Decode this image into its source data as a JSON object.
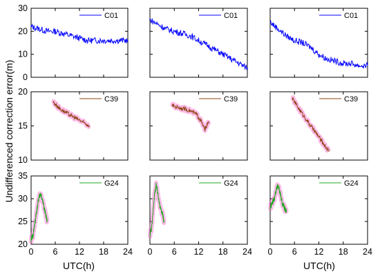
{
  "figure": {
    "ylabel": "Undifferenced correction error(m)",
    "xlabel": "UTC(h)"
  },
  "chart_data": [
    {
      "type": "line",
      "panel": "row1-col1",
      "ylim": [
        0,
        30
      ],
      "yticks": [
        0,
        10,
        20,
        30
      ],
      "xlim": [
        0,
        24
      ],
      "xticks": [
        0,
        6,
        12,
        18,
        24
      ],
      "series": [
        {
          "name": "C01",
          "color": "#0000ff",
          "x": [
            0,
            2,
            4,
            6,
            8,
            10,
            12,
            14,
            16,
            18,
            20,
            22,
            24
          ],
          "y": [
            22,
            21,
            20,
            20,
            19,
            18,
            17,
            16,
            16,
            16,
            16,
            16,
            16
          ]
        }
      ]
    },
    {
      "type": "line",
      "panel": "row1-col2",
      "ylim": [
        0,
        30
      ],
      "xlim": [
        0,
        24
      ],
      "series": [
        {
          "name": "C01",
          "color": "#0000ff",
          "x": [
            0,
            2,
            4,
            6,
            8,
            10,
            12,
            14,
            16,
            18,
            20,
            22,
            24
          ],
          "y": [
            25,
            23,
            21,
            20,
            19,
            18,
            16,
            14,
            12,
            10,
            8,
            6,
            4
          ]
        }
      ]
    },
    {
      "type": "line",
      "panel": "row1-col3",
      "ylim": [
        0,
        30
      ],
      "xlim": [
        0,
        24
      ],
      "series": [
        {
          "name": "C01",
          "color": "#0000ff",
          "x": [
            0,
            2,
            4,
            6,
            8,
            10,
            12,
            14,
            16,
            18,
            20,
            22,
            24
          ],
          "y": [
            24,
            21,
            18,
            16,
            15,
            13,
            10,
            8,
            7,
            6,
            6,
            5,
            5
          ]
        }
      ]
    },
    {
      "type": "line",
      "panel": "row2-col1",
      "ylim": [
        10,
        20
      ],
      "yticks": [
        10,
        15,
        20
      ],
      "xlim": [
        0,
        24
      ],
      "xticks": [
        0,
        6,
        12,
        18,
        24
      ],
      "series": [
        {
          "name": "C39",
          "color": "#8b4513",
          "x": [
            5.5,
            7,
            8.5,
            10,
            11.5,
            13,
            14.5
          ],
          "y": [
            18.5,
            17.6,
            17,
            16.5,
            16,
            15.5,
            15
          ]
        }
      ]
    },
    {
      "type": "line",
      "panel": "row2-col2",
      "ylim": [
        10,
        20
      ],
      "xlim": [
        0,
        24
      ],
      "series": [
        {
          "name": "C39",
          "color": "#8b4513",
          "x": [
            5.5,
            7,
            8.5,
            10,
            11.5,
            12.5,
            13.5,
            14.5
          ],
          "y": [
            18,
            17.7,
            17.5,
            17.2,
            16.7,
            15.8,
            14.5,
            15.6
          ]
        }
      ]
    },
    {
      "type": "line",
      "panel": "row2-col3",
      "ylim": [
        10,
        20
      ],
      "xlim": [
        0,
        24
      ],
      "series": [
        {
          "name": "C39",
          "color": "#8b4513",
          "x": [
            5.5,
            7,
            8.5,
            10,
            11.5,
            13,
            14.5
          ],
          "y": [
            19,
            17.6,
            16.3,
            15,
            13.8,
            12.5,
            11.3
          ]
        }
      ]
    },
    {
      "type": "line",
      "panel": "row3-col1",
      "ylim": [
        20,
        35
      ],
      "yticks": [
        20,
        25,
        30,
        35
      ],
      "xlim": [
        0,
        24
      ],
      "xticks": [
        0,
        6,
        12,
        18,
        24
      ],
      "series": [
        {
          "name": "G24",
          "color": "#22aa22",
          "x": [
            0,
            0.5,
            1,
            1.5,
            2,
            2.5,
            3,
            3.5,
            4
          ],
          "y": [
            21,
            22,
            25,
            28,
            30.5,
            31,
            29,
            27,
            25
          ]
        }
      ]
    },
    {
      "type": "line",
      "panel": "row3-col2",
      "ylim": [
        20,
        35
      ],
      "xlim": [
        0,
        24
      ],
      "series": [
        {
          "name": "G24",
          "color": "#22aa22",
          "x": [
            0,
            0.5,
            1,
            1.5,
            2,
            2.5,
            3,
            3.5
          ],
          "y": [
            22,
            24,
            30,
            33,
            31,
            28,
            27,
            25
          ]
        }
      ]
    },
    {
      "type": "line",
      "panel": "row3-col3",
      "ylim": [
        20,
        35
      ],
      "xlim": [
        0,
        24
      ],
      "series": [
        {
          "name": "G24",
          "color": "#22aa22",
          "x": [
            0,
            0.5,
            1,
            1.5,
            2,
            2.5,
            3,
            3.5,
            4
          ],
          "y": [
            28,
            29,
            30,
            32,
            33,
            31,
            29,
            28,
            27
          ]
        }
      ]
    }
  ]
}
